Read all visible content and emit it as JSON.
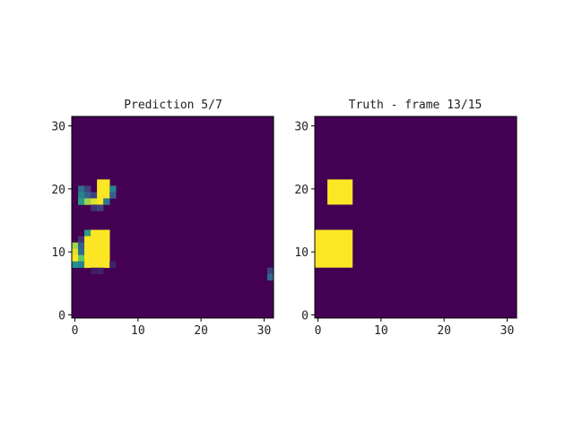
{
  "chart_data": [
    {
      "type": "heatmap",
      "title": "Prediction 5/7",
      "xlim": [
        -0.5,
        31.5
      ],
      "ylim": [
        -0.5,
        31.5
      ],
      "xticks": [
        0,
        10,
        20,
        30
      ],
      "yticks": [
        0,
        10,
        20,
        30
      ],
      "colormap": "viridis",
      "background_value": 0.0,
      "cells": [
        {
          "x": 4,
          "y": 21,
          "v": 1.0
        },
        {
          "x": 5,
          "y": 21,
          "v": 1.0
        },
        {
          "x": 1,
          "y": 20,
          "v": 0.35
        },
        {
          "x": 2,
          "y": 20,
          "v": 0.2
        },
        {
          "x": 4,
          "y": 20,
          "v": 1.0
        },
        {
          "x": 5,
          "y": 20,
          "v": 1.0
        },
        {
          "x": 6,
          "y": 20,
          "v": 0.45
        },
        {
          "x": 1,
          "y": 19,
          "v": 0.45
        },
        {
          "x": 2,
          "y": 19,
          "v": 0.3
        },
        {
          "x": 3,
          "y": 19,
          "v": 0.2
        },
        {
          "x": 4,
          "y": 19,
          "v": 1.0
        },
        {
          "x": 5,
          "y": 19,
          "v": 1.0
        },
        {
          "x": 6,
          "y": 19,
          "v": 0.3
        },
        {
          "x": 1,
          "y": 18,
          "v": 0.55
        },
        {
          "x": 2,
          "y": 18,
          "v": 0.85
        },
        {
          "x": 3,
          "y": 18,
          "v": 0.95
        },
        {
          "x": 4,
          "y": 18,
          "v": 1.0
        },
        {
          "x": 5,
          "y": 18,
          "v": 0.4
        },
        {
          "x": 3,
          "y": 17,
          "v": 0.15
        },
        {
          "x": 4,
          "y": 17,
          "v": 0.2
        },
        {
          "x": 2,
          "y": 13,
          "v": 0.55
        },
        {
          "x": 3,
          "y": 13,
          "v": 1.0
        },
        {
          "x": 4,
          "y": 13,
          "v": 1.0
        },
        {
          "x": 5,
          "y": 13,
          "v": 1.0
        },
        {
          "x": 1,
          "y": 12,
          "v": 0.15
        },
        {
          "x": 2,
          "y": 12,
          "v": 1.0
        },
        {
          "x": 3,
          "y": 12,
          "v": 1.0
        },
        {
          "x": 4,
          "y": 12,
          "v": 1.0
        },
        {
          "x": 5,
          "y": 12,
          "v": 1.0
        },
        {
          "x": 0,
          "y": 11,
          "v": 0.85
        },
        {
          "x": 1,
          "y": 11,
          "v": 0.3
        },
        {
          "x": 2,
          "y": 11,
          "v": 1.0
        },
        {
          "x": 3,
          "y": 11,
          "v": 1.0
        },
        {
          "x": 4,
          "y": 11,
          "v": 1.0
        },
        {
          "x": 5,
          "y": 11,
          "v": 1.0
        },
        {
          "x": 0,
          "y": 10,
          "v": 0.95
        },
        {
          "x": 1,
          "y": 10,
          "v": 0.35
        },
        {
          "x": 2,
          "y": 10,
          "v": 1.0
        },
        {
          "x": 3,
          "y": 10,
          "v": 1.0
        },
        {
          "x": 4,
          "y": 10,
          "v": 1.0
        },
        {
          "x": 5,
          "y": 10,
          "v": 1.0
        },
        {
          "x": 0,
          "y": 9,
          "v": 1.0
        },
        {
          "x": 1,
          "y": 9,
          "v": 0.75
        },
        {
          "x": 2,
          "y": 9,
          "v": 1.0
        },
        {
          "x": 3,
          "y": 9,
          "v": 1.0
        },
        {
          "x": 4,
          "y": 9,
          "v": 1.0
        },
        {
          "x": 5,
          "y": 9,
          "v": 1.0
        },
        {
          "x": 0,
          "y": 8,
          "v": 0.5
        },
        {
          "x": 1,
          "y": 8,
          "v": 0.45
        },
        {
          "x": 2,
          "y": 8,
          "v": 1.0
        },
        {
          "x": 3,
          "y": 8,
          "v": 1.0
        },
        {
          "x": 4,
          "y": 8,
          "v": 1.0
        },
        {
          "x": 5,
          "y": 8,
          "v": 1.0
        },
        {
          "x": 6,
          "y": 8,
          "v": 0.1
        },
        {
          "x": 3,
          "y": 7,
          "v": 0.08
        },
        {
          "x": 4,
          "y": 7,
          "v": 0.1
        },
        {
          "x": 31,
          "y": 7,
          "v": 0.2
        },
        {
          "x": 31,
          "y": 6,
          "v": 0.35
        }
      ]
    },
    {
      "type": "heatmap",
      "title": "Truth - frame 13/15",
      "xlim": [
        -0.5,
        31.5
      ],
      "ylim": [
        -0.5,
        31.5
      ],
      "xticks": [
        0,
        10,
        20,
        30
      ],
      "yticks": [
        0,
        10,
        20,
        30
      ],
      "colormap": "viridis",
      "background_value": 0.0,
      "rects": [
        {
          "x0": 2,
          "x1": 5,
          "y0": 18,
          "y1": 21,
          "v": 1.0
        },
        {
          "x0": 0,
          "x1": 5,
          "y0": 8,
          "y1": 13,
          "v": 1.0
        }
      ]
    }
  ]
}
